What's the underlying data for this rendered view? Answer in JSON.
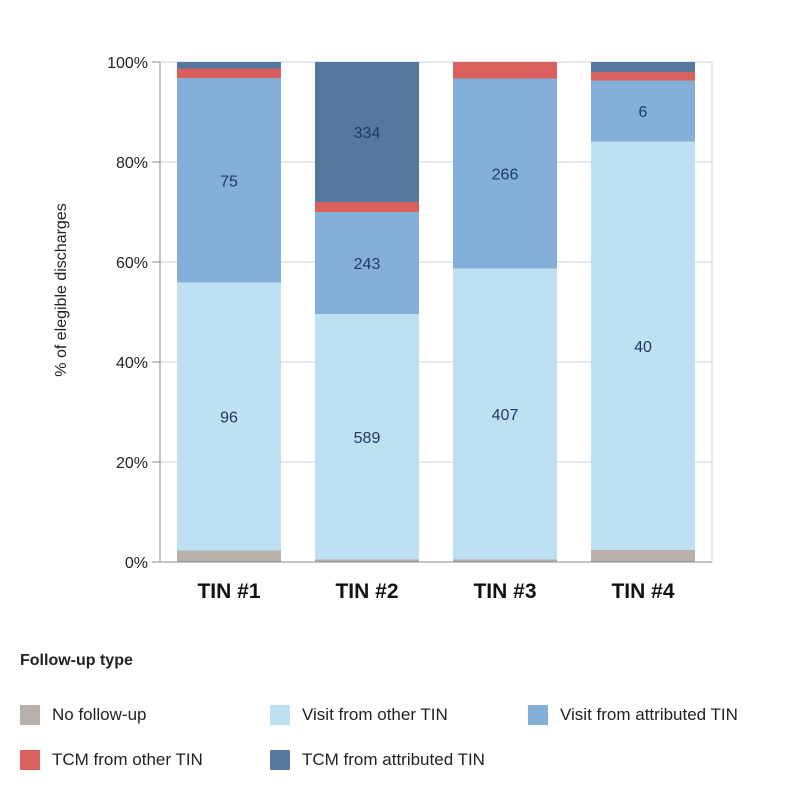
{
  "chart_data": {
    "type": "bar",
    "stacked": true,
    "percent": true,
    "categories": [
      "TIN #1",
      "TIN #2",
      "TIN #3",
      "TIN #4"
    ],
    "ylabel": "% of elegible discharges",
    "ylim": [
      0,
      100
    ],
    "yticks": [
      "0%",
      "20%",
      "40%",
      "60%",
      "80%",
      "100%"
    ],
    "grid": true,
    "legend_title": "Follow-up type",
    "legend_position": "bottom",
    "series": [
      {
        "name": "No follow-up",
        "color": "#b8b0ab",
        "values": [
          2.3,
          0.5,
          0.5,
          2.4
        ],
        "labels": [
          "",
          "",
          "",
          ""
        ]
      },
      {
        "name": "Visit from other TIN",
        "color": "#bde0f2",
        "values": [
          53.6,
          49.1,
          58.2,
          81.7
        ],
        "labels": [
          "96",
          "589",
          "407",
          "40"
        ]
      },
      {
        "name": "Visit from attributed TIN",
        "color": "#84afd8",
        "values": [
          40.9,
          20.4,
          38.0,
          12.2
        ],
        "labels": [
          "75",
          "243",
          "266",
          "6"
        ]
      },
      {
        "name": "TCM from other TIN",
        "color": "#d9605c",
        "values": [
          1.9,
          2.0,
          3.3,
          1.7
        ],
        "labels": [
          "",
          "",
          "",
          ""
        ]
      },
      {
        "name": "TCM from attributed TIN",
        "color": "#55789f",
        "values": [
          1.3,
          28.0,
          0.0,
          2.0
        ],
        "labels": [
          "",
          "334",
          "",
          ""
        ]
      }
    ]
  }
}
